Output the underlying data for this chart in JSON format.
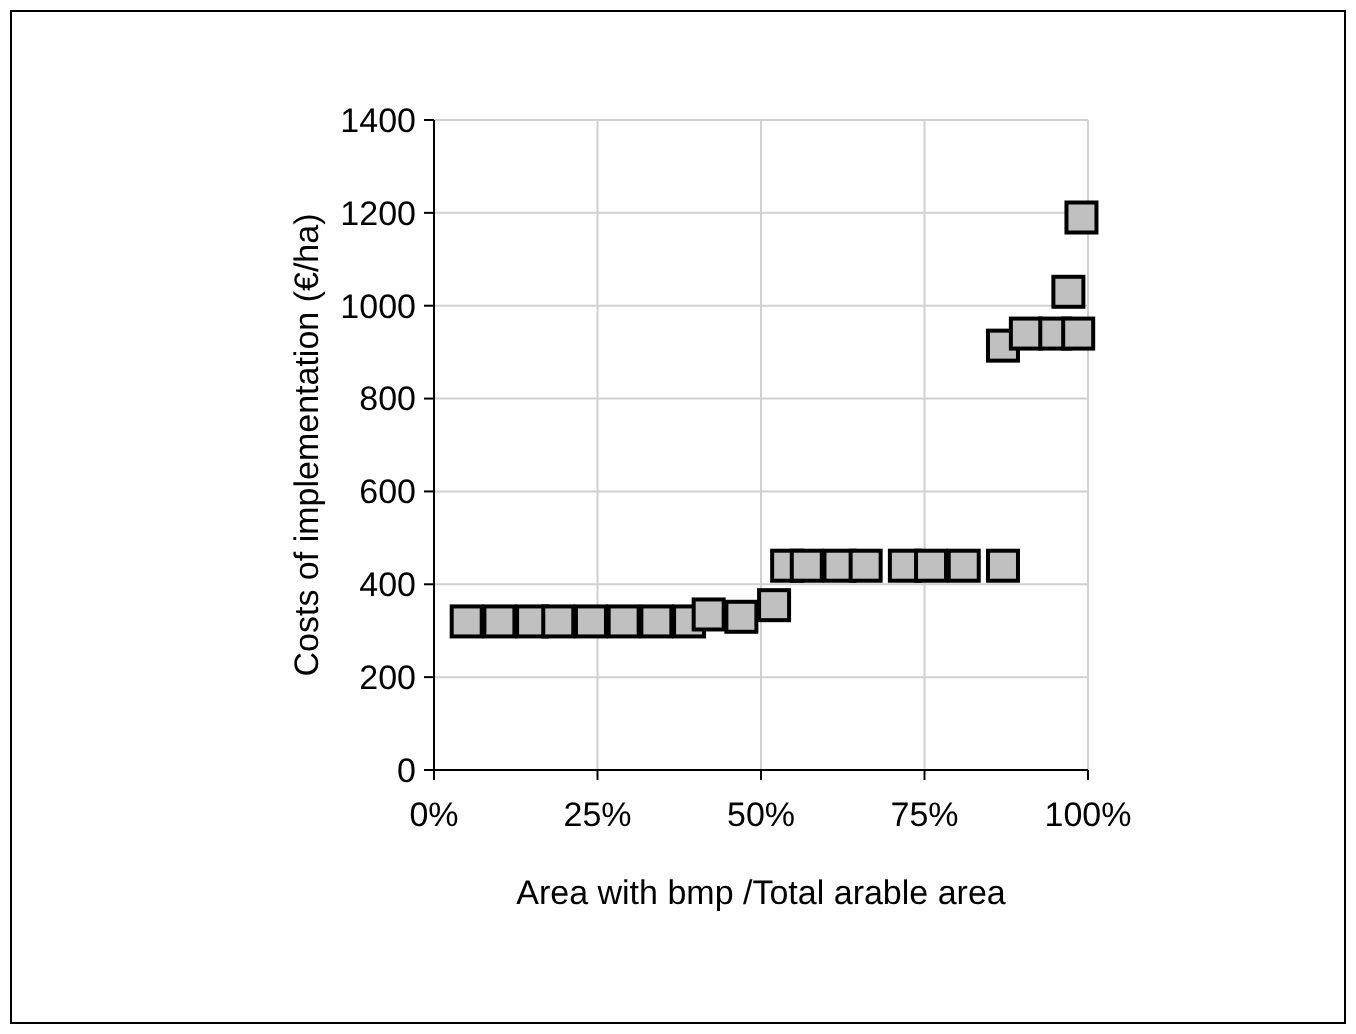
{
  "chart_data": {
    "type": "scatter",
    "xlabel": "Area with bmp /Total arable area",
    "ylabel": "Costs of implementation (€/ha)",
    "marker": "square",
    "grid": true,
    "xlim": [
      0,
      1
    ],
    "xticks": [
      {
        "value": 0,
        "label": "0%"
      },
      {
        "value": 0.25,
        "label": "25%"
      },
      {
        "value": 0.5,
        "label": "50%"
      },
      {
        "value": 0.75,
        "label": "75%"
      },
      {
        "value": 1,
        "label": "100%"
      }
    ],
    "ylim": [
      0,
      1400
    ],
    "yticks": [
      0,
      200,
      400,
      600,
      800,
      1000,
      1200,
      1400
    ],
    "series": [
      {
        "color": "#c0c0c0",
        "x": [
          0.05,
          0.1,
          0.15,
          0.19,
          0.24,
          0.29,
          0.34,
          0.39,
          0.42,
          0.47,
          0.52,
          0.54,
          0.57,
          0.62,
          0.66,
          0.72,
          0.76,
          0.81,
          0.87,
          0.87,
          0.905,
          0.95,
          0.985,
          0.97,
          0.99
        ],
        "values": [
          320,
          320,
          320,
          320,
          320,
          320,
          320,
          320,
          335,
          330,
          355,
          440,
          440,
          440,
          440,
          440,
          440,
          440,
          440,
          914,
          940,
          940,
          940,
          1030,
          1190
        ]
      }
    ]
  }
}
